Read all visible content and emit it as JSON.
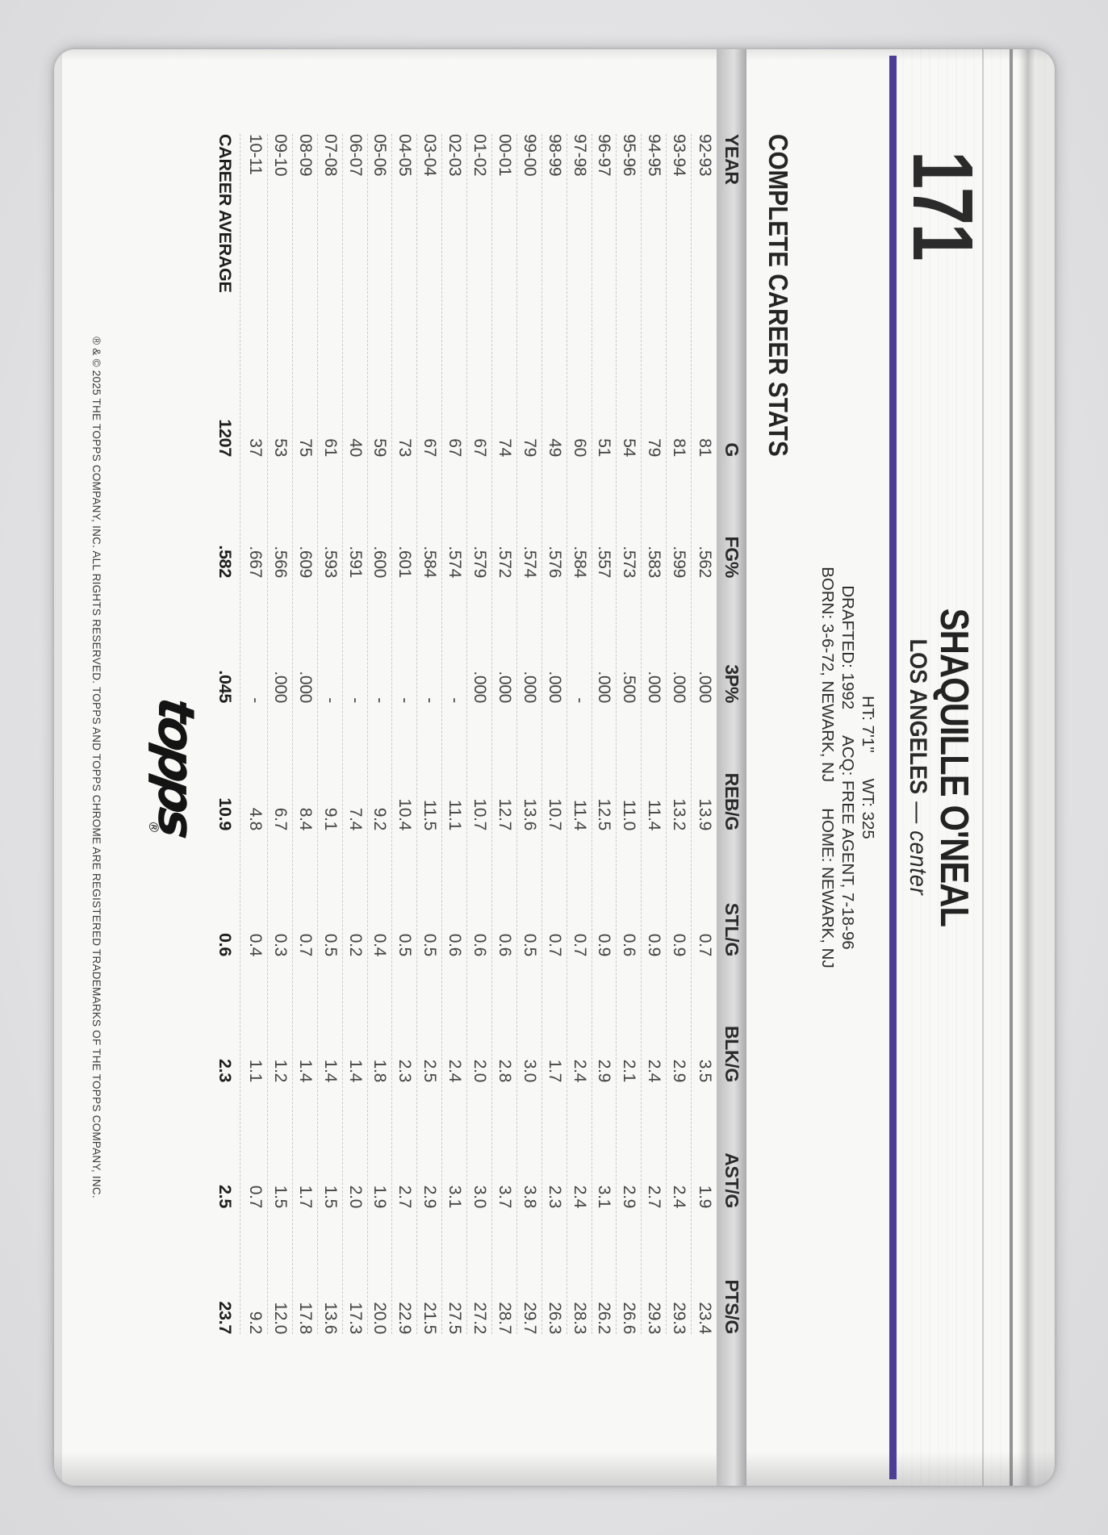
{
  "header": {
    "number": "171",
    "player": "SHAQUILLE O'NEAL",
    "team": "LOS ANGELES",
    "separator": "—",
    "position": "center",
    "bio": {
      "l1a": "HT: 7'1\"",
      "l1b": "WT: 325",
      "l2a": "DRAFTED: 1992",
      "l2b": "ACQ: FREE AGENT, 7-18-96",
      "l3a": "BORN: 3-6-72, NEWARK, NJ",
      "l3b": "HOME: NEWARK, NJ"
    }
  },
  "stats": {
    "title": "COMPLETE CAREER STATS"
  },
  "table": {
    "columns": [
      "YEAR",
      "G",
      "FG%",
      "3P%",
      "REB/G",
      "STL/G",
      "BLK/G",
      "AST/G",
      "PTS/G"
    ],
    "rows": [
      [
        "92-93",
        "81",
        ".562",
        ".000",
        "13.9",
        "0.7",
        "3.5",
        "1.9",
        "23.4"
      ],
      [
        "93-94",
        "81",
        ".599",
        ".000",
        "13.2",
        "0.9",
        "2.9",
        "2.4",
        "29.3"
      ],
      [
        "94-95",
        "79",
        ".583",
        ".000",
        "11.4",
        "0.9",
        "2.4",
        "2.7",
        "29.3"
      ],
      [
        "95-96",
        "54",
        ".573",
        ".500",
        "11.0",
        "0.6",
        "2.1",
        "2.9",
        "26.6"
      ],
      [
        "96-97",
        "51",
        ".557",
        ".000",
        "12.5",
        "0.9",
        "2.9",
        "3.1",
        "26.2"
      ],
      [
        "97-98",
        "60",
        ".584",
        "-",
        "11.4",
        "0.7",
        "2.4",
        "2.4",
        "28.3"
      ],
      [
        "98-99",
        "49",
        ".576",
        ".000",
        "10.7",
        "0.7",
        "1.7",
        "2.3",
        "26.3"
      ],
      [
        "99-00",
        "79",
        ".574",
        ".000",
        "13.6",
        "0.5",
        "3.0",
        "3.8",
        "29.7"
      ],
      [
        "00-01",
        "74",
        ".572",
        ".000",
        "12.7",
        "0.6",
        "2.8",
        "3.7",
        "28.7"
      ],
      [
        "01-02",
        "67",
        ".579",
        ".000",
        "10.7",
        "0.6",
        "2.0",
        "3.0",
        "27.2"
      ],
      [
        "02-03",
        "67",
        ".574",
        "-",
        "11.1",
        "0.6",
        "2.4",
        "3.1",
        "27.5"
      ],
      [
        "03-04",
        "67",
        ".584",
        "-",
        "11.5",
        "0.5",
        "2.5",
        "2.9",
        "21.5"
      ],
      [
        "04-05",
        "73",
        ".601",
        "-",
        "10.4",
        "0.5",
        "2.3",
        "2.7",
        "22.9"
      ],
      [
        "05-06",
        "59",
        ".600",
        "-",
        "9.2",
        "0.4",
        "1.8",
        "1.9",
        "20.0"
      ],
      [
        "06-07",
        "40",
        ".591",
        "-",
        "7.4",
        "0.2",
        "1.4",
        "2.0",
        "17.3"
      ],
      [
        "07-08",
        "61",
        ".593",
        "-",
        "9.1",
        "0.5",
        "1.4",
        "1.5",
        "13.6"
      ],
      [
        "08-09",
        "75",
        ".609",
        ".000",
        "8.4",
        "0.7",
        "1.4",
        "1.7",
        "17.8"
      ],
      [
        "09-10",
        "53",
        ".566",
        ".000",
        "6.7",
        "0.3",
        "1.2",
        "1.5",
        "12.0"
      ],
      [
        "10-11",
        "37",
        ".667",
        "-",
        "4.8",
        "0.4",
        "1.1",
        "0.7",
        "9.2"
      ]
    ],
    "career": [
      "CAREER AVERAGE",
      "1207",
      ".582",
      ".045",
      "10.9",
      "0.6",
      "2.3",
      "2.5",
      "23.7"
    ]
  },
  "footer": {
    "logo_text": "topps",
    "logo_reg": "®",
    "copyright": "® & © 2025 THE TOPPS COMPANY, INC. ALL RIGHTS RESERVED. TOPPS AND TOPPS CHROME ARE REGISTERED TRADEMARKS OF THE TOPPS COMPANY, INC."
  },
  "colors": {
    "accent_purple": "#4c3d96",
    "header_band_gray": "#bdbdbf",
    "card_background": "#f8f8f6",
    "scan_background": "#e2e2e4"
  }
}
